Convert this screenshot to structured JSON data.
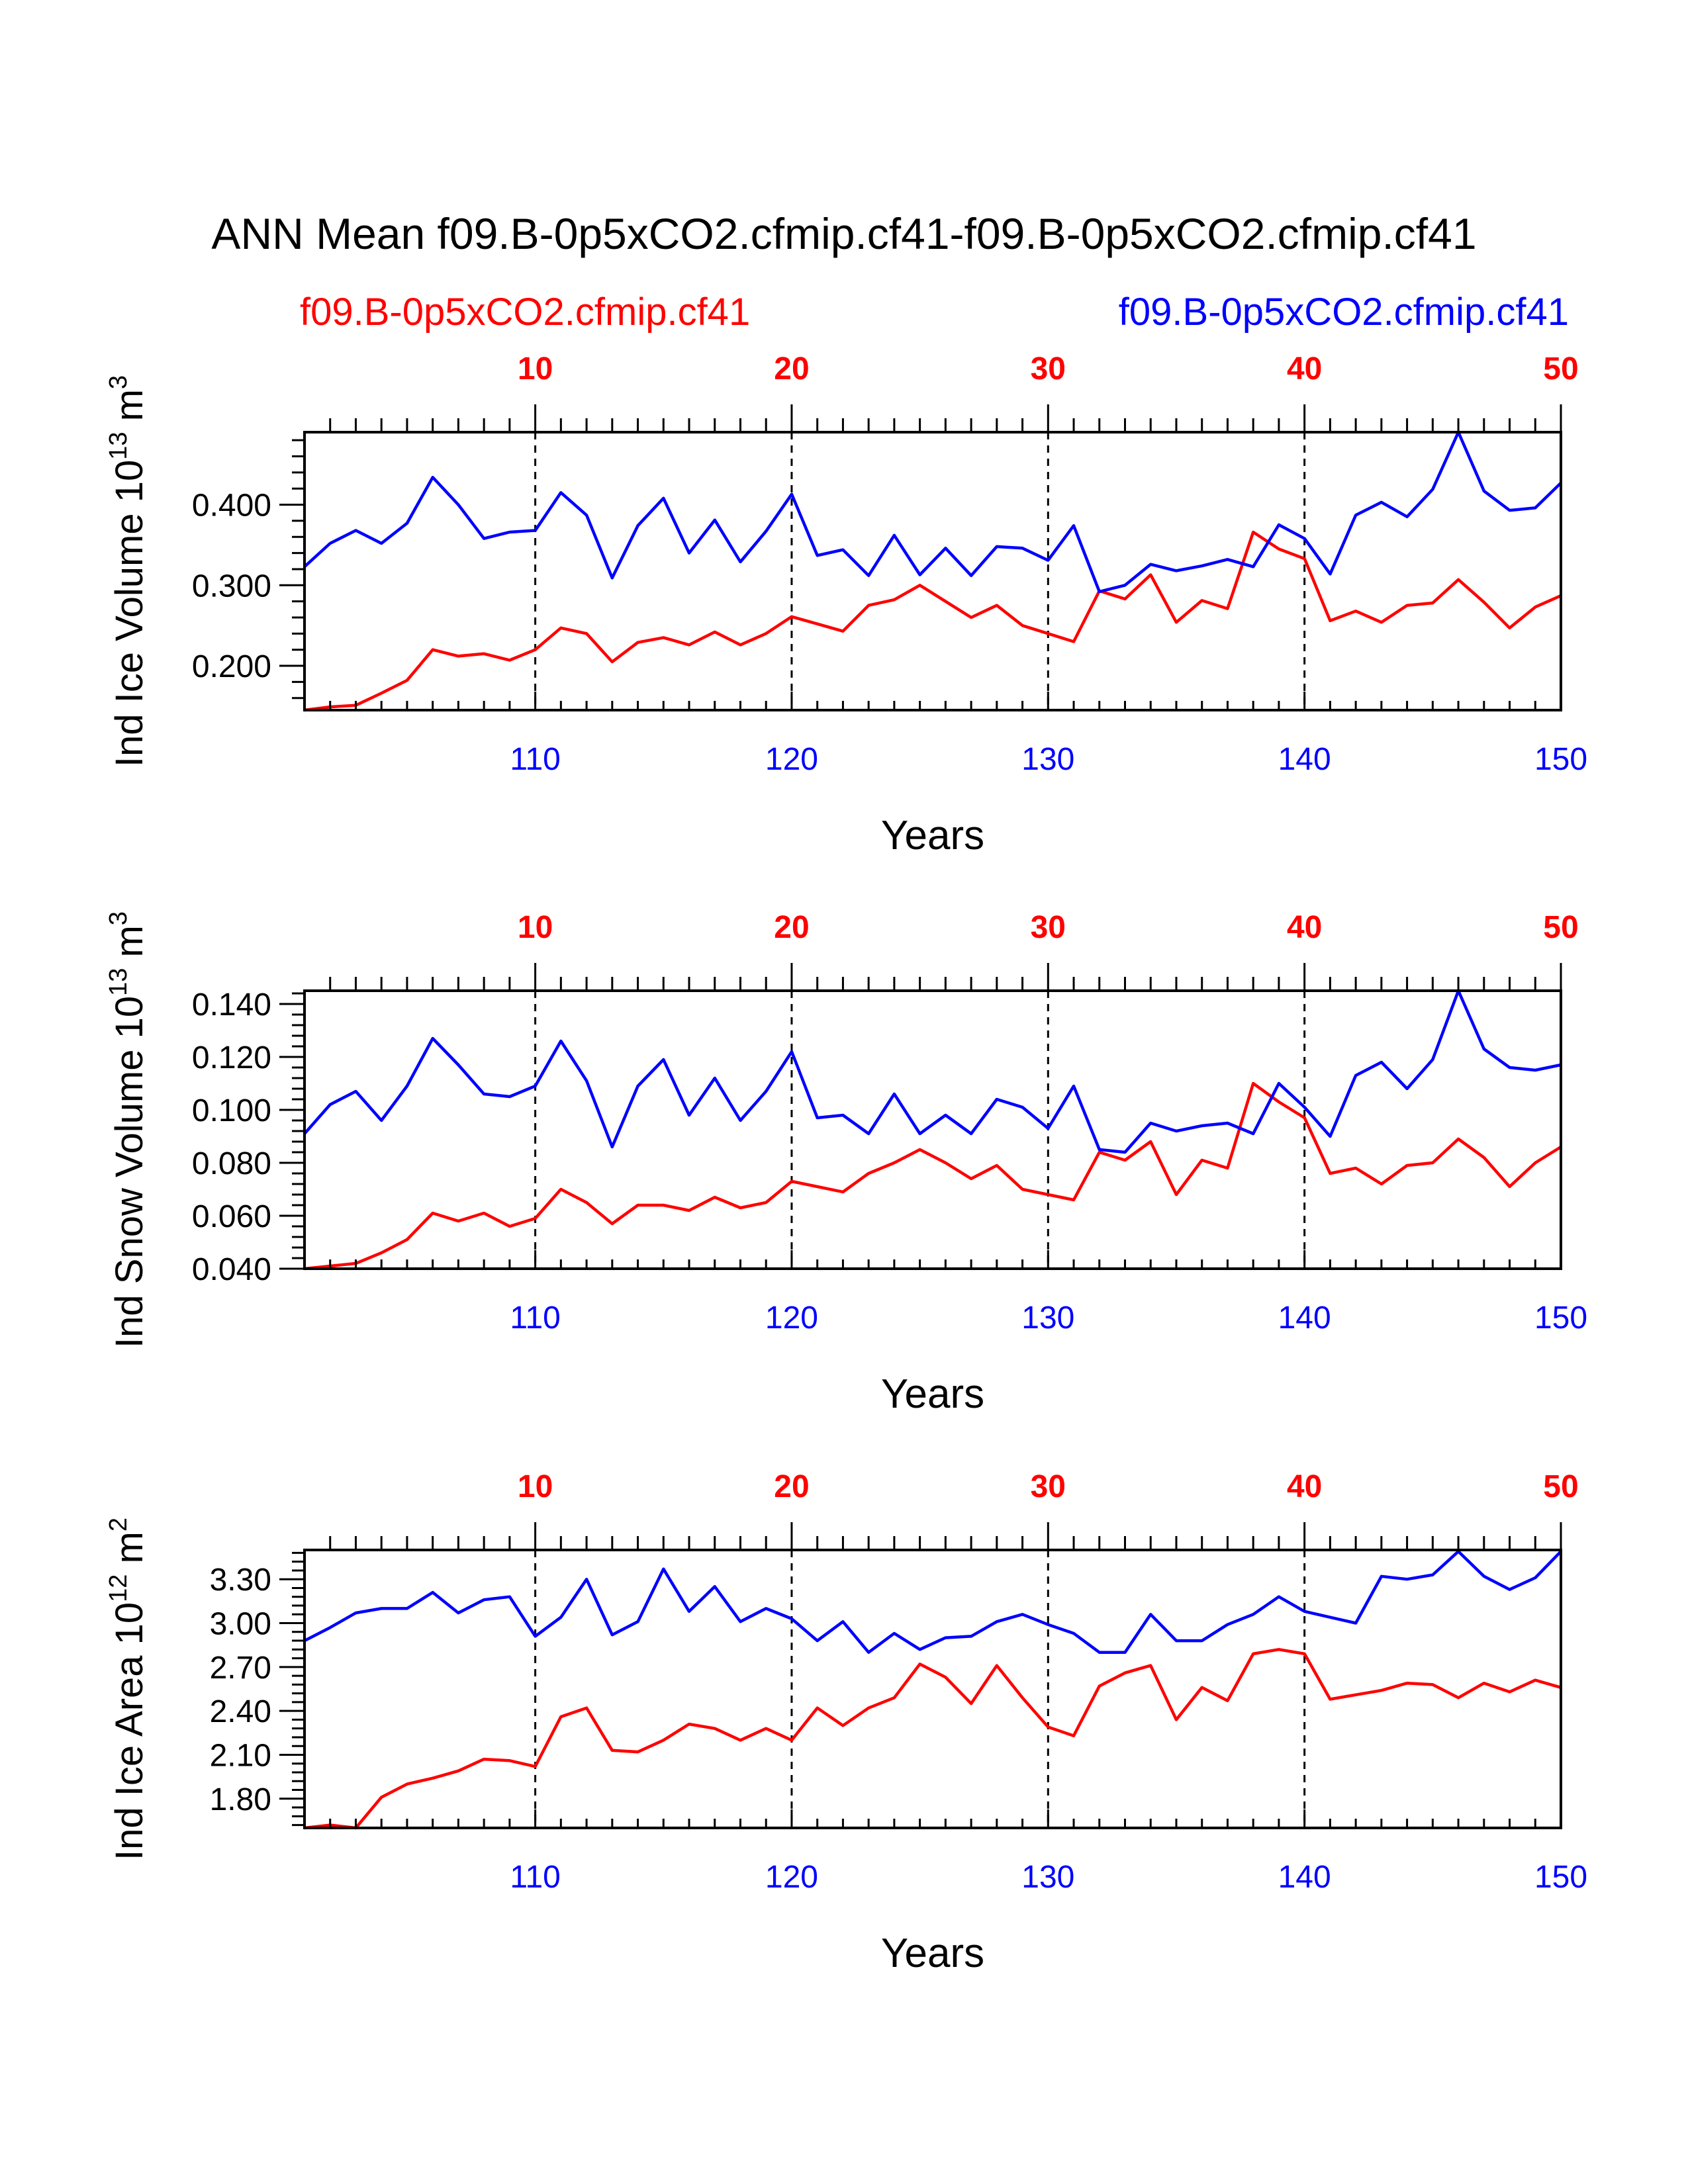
{
  "title": "ANN Mean f09.B-0p5xCO2.cfmip.cf41-f09.B-0p5xCO2.cfmip.cf41",
  "legend_left": "f09.B-0p5xCO2.cfmip.cf41",
  "legend_right": "f09.B-0p5xCO2.cfmip.cf41",
  "colors": {
    "series_a": "#ff0000",
    "series_b": "#0000ff"
  },
  "chart_data": [
    {
      "type": "line",
      "ylabel": "Ind Ice Volume 10",
      "ylabel_exp": "13",
      "ylabel_unit": " m",
      "ylabel_unit_exp": "3",
      "xlabel": "Years",
      "x_bottom": [
        101,
        102,
        103,
        104,
        105,
        106,
        107,
        108,
        109,
        110,
        111,
        112,
        113,
        114,
        115,
        116,
        117,
        118,
        119,
        120,
        121,
        122,
        123,
        124,
        125,
        126,
        127,
        128,
        129,
        130,
        131,
        132,
        133,
        134,
        135,
        136,
        137,
        138,
        139,
        140,
        141,
        142,
        143,
        144,
        145,
        146,
        147,
        148,
        149,
        150
      ],
      "x_top": [
        1,
        2,
        3,
        4,
        5,
        6,
        7,
        8,
        9,
        10,
        11,
        12,
        13,
        14,
        15,
        16,
        17,
        18,
        19,
        20,
        21,
        22,
        23,
        24,
        25,
        26,
        27,
        28,
        29,
        30,
        31,
        32,
        33,
        34,
        35,
        36,
        37,
        38,
        39,
        40,
        41,
        42,
        43,
        44,
        45,
        46,
        47,
        48,
        49,
        50
      ],
      "xlim_bottom": [
        101,
        150
      ],
      "xlim_top": [
        1,
        50
      ],
      "ylim": [
        0.145,
        0.49
      ],
      "yticks": [
        0.2,
        0.3,
        0.4
      ],
      "ytick_labels": [
        "0.200",
        "0.300",
        "0.400"
      ],
      "xticks_bottom": [
        110,
        120,
        130,
        140,
        150
      ],
      "xtick_labels_bottom": [
        "110",
        "120",
        "130",
        "140",
        "150"
      ],
      "xticks_top": [
        10,
        20,
        30,
        40,
        50
      ],
      "xtick_labels_top": [
        "10",
        "20",
        "30",
        "40",
        "50"
      ],
      "series": [
        {
          "name": "f09.B-0p5xCO2.cfmip.cf41 (red)",
          "color": "#ff0000",
          "values": [
            0.145,
            0.149,
            0.151,
            0.166,
            0.182,
            0.22,
            0.212,
            0.215,
            0.207,
            0.22,
            0.247,
            0.24,
            0.205,
            0.229,
            0.235,
            0.226,
            0.242,
            0.226,
            0.24,
            0.261,
            0.252,
            0.243,
            0.275,
            0.282,
            0.3,
            0.28,
            0.26,
            0.275,
            0.25,
            0.24,
            0.23,
            0.293,
            0.283,
            0.313,
            0.254,
            0.281,
            0.271,
            0.366,
            0.345,
            0.333,
            0.256,
            0.268,
            0.254,
            0.275,
            0.278,
            0.307,
            0.279,
            0.247,
            0.273,
            0.287
          ]
        },
        {
          "name": "f09.B-0p5xCO2.cfmip.cf41 (blue)",
          "color": "#0000ff",
          "values": [
            0.323,
            0.352,
            0.368,
            0.352,
            0.377,
            0.434,
            0.4,
            0.358,
            0.366,
            0.368,
            0.415,
            0.387,
            0.309,
            0.374,
            0.408,
            0.34,
            0.381,
            0.329,
            0.367,
            0.413,
            0.337,
            0.344,
            0.312,
            0.362,
            0.313,
            0.346,
            0.312,
            0.348,
            0.346,
            0.331,
            0.374,
            0.292,
            0.3,
            0.326,
            0.318,
            0.324,
            0.332,
            0.323,
            0.375,
            0.358,
            0.314,
            0.387,
            0.403,
            0.385,
            0.419,
            0.49,
            0.417,
            0.393,
            0.396,
            0.427
          ]
        }
      ]
    },
    {
      "type": "line",
      "ylabel": "Ind Snow Volume 10",
      "ylabel_exp": "13",
      "ylabel_unit": " m",
      "ylabel_unit_exp": "3",
      "xlabel": "Years",
      "x_bottom": [
        101,
        102,
        103,
        104,
        105,
        106,
        107,
        108,
        109,
        110,
        111,
        112,
        113,
        114,
        115,
        116,
        117,
        118,
        119,
        120,
        121,
        122,
        123,
        124,
        125,
        126,
        127,
        128,
        129,
        130,
        131,
        132,
        133,
        134,
        135,
        136,
        137,
        138,
        139,
        140,
        141,
        142,
        143,
        144,
        145,
        146,
        147,
        148,
        149,
        150
      ],
      "x_top": [
        1,
        2,
        3,
        4,
        5,
        6,
        7,
        8,
        9,
        10,
        11,
        12,
        13,
        14,
        15,
        16,
        17,
        18,
        19,
        20,
        21,
        22,
        23,
        24,
        25,
        26,
        27,
        28,
        29,
        30,
        31,
        32,
        33,
        34,
        35,
        36,
        37,
        38,
        39,
        40,
        41,
        42,
        43,
        44,
        45,
        46,
        47,
        48,
        49,
        50
      ],
      "xlim_bottom": [
        101,
        150
      ],
      "xlim_top": [
        1,
        50
      ],
      "ylim": [
        0.04,
        0.145
      ],
      "yticks": [
        0.04,
        0.06,
        0.08,
        0.1,
        0.12,
        0.14
      ],
      "ytick_labels": [
        "0.040",
        "0.060",
        "0.080",
        "0.100",
        "0.120",
        "0.140"
      ],
      "xticks_bottom": [
        110,
        120,
        130,
        140,
        150
      ],
      "xtick_labels_bottom": [
        "110",
        "120",
        "130",
        "140",
        "150"
      ],
      "xticks_top": [
        10,
        20,
        30,
        40,
        50
      ],
      "xtick_labels_top": [
        "10",
        "20",
        "30",
        "40",
        "50"
      ],
      "series": [
        {
          "name": "f09.B-0p5xCO2.cfmip.cf41 (red)",
          "color": "#ff0000",
          "values": [
            0.04,
            0.041,
            0.042,
            0.046,
            0.051,
            0.061,
            0.058,
            0.061,
            0.056,
            0.059,
            0.07,
            0.065,
            0.057,
            0.064,
            0.064,
            0.062,
            0.067,
            0.063,
            0.065,
            0.073,
            0.071,
            0.069,
            0.076,
            0.08,
            0.085,
            0.08,
            0.074,
            0.079,
            0.07,
            0.068,
            0.066,
            0.084,
            0.081,
            0.088,
            0.068,
            0.081,
            0.078,
            0.11,
            0.103,
            0.097,
            0.076,
            0.078,
            0.072,
            0.079,
            0.08,
            0.089,
            0.082,
            0.071,
            0.08,
            0.086
          ]
        },
        {
          "name": "f09.B-0p5xCO2.cfmip.cf41 (blue)",
          "color": "#0000ff",
          "values": [
            0.091,
            0.102,
            0.107,
            0.096,
            0.109,
            0.127,
            0.117,
            0.106,
            0.105,
            0.109,
            0.126,
            0.111,
            0.086,
            0.109,
            0.119,
            0.098,
            0.112,
            0.096,
            0.107,
            0.122,
            0.097,
            0.098,
            0.091,
            0.106,
            0.091,
            0.098,
            0.091,
            0.104,
            0.101,
            0.093,
            0.109,
            0.085,
            0.084,
            0.095,
            0.092,
            0.094,
            0.095,
            0.091,
            0.11,
            0.101,
            0.09,
            0.113,
            0.118,
            0.108,
            0.119,
            0.145,
            0.123,
            0.116,
            0.115,
            0.117
          ]
        }
      ]
    },
    {
      "type": "line",
      "ylabel": "Ind Ice Area 10",
      "ylabel_exp": "12",
      "ylabel_unit": " m",
      "ylabel_unit_exp": "2",
      "xlabel": "Years",
      "x_bottom": [
        101,
        102,
        103,
        104,
        105,
        106,
        107,
        108,
        109,
        110,
        111,
        112,
        113,
        114,
        115,
        116,
        117,
        118,
        119,
        120,
        121,
        122,
        123,
        124,
        125,
        126,
        127,
        128,
        129,
        130,
        131,
        132,
        133,
        134,
        135,
        136,
        137,
        138,
        139,
        140,
        141,
        142,
        143,
        144,
        145,
        146,
        147,
        148,
        149,
        150
      ],
      "x_top": [
        1,
        2,
        3,
        4,
        5,
        6,
        7,
        8,
        9,
        10,
        11,
        12,
        13,
        14,
        15,
        16,
        17,
        18,
        19,
        20,
        21,
        22,
        23,
        24,
        25,
        26,
        27,
        28,
        29,
        30,
        31,
        32,
        33,
        34,
        35,
        36,
        37,
        38,
        39,
        40,
        41,
        42,
        43,
        44,
        45,
        46,
        47,
        48,
        49,
        50
      ],
      "xlim_bottom": [
        101,
        150
      ],
      "xlim_top": [
        1,
        50
      ],
      "ylim": [
        1.6,
        3.5
      ],
      "yticks": [
        1.8,
        2.1,
        2.4,
        2.7,
        3.0,
        3.3
      ],
      "ytick_labels": [
        "1.80",
        "2.10",
        "2.40",
        "2.70",
        "3.00",
        "3.30"
      ],
      "xticks_bottom": [
        110,
        120,
        130,
        140,
        150
      ],
      "xtick_labels_bottom": [
        "110",
        "120",
        "130",
        "140",
        "150"
      ],
      "xticks_top": [
        10,
        20,
        30,
        40,
        50
      ],
      "xtick_labels_top": [
        "10",
        "20",
        "30",
        "40",
        "50"
      ],
      "series": [
        {
          "name": "f09.B-0p5xCO2.cfmip.cf41 (red)",
          "color": "#ff0000",
          "values": [
            1.6,
            1.62,
            1.6,
            1.81,
            1.9,
            1.94,
            1.99,
            2.07,
            2.06,
            2.02,
            2.36,
            2.42,
            2.13,
            2.12,
            2.2,
            2.31,
            2.28,
            2.2,
            2.28,
            2.2,
            2.42,
            2.3,
            2.42,
            2.49,
            2.72,
            2.63,
            2.45,
            2.71,
            2.49,
            2.29,
            2.23,
            2.57,
            2.66,
            2.71,
            2.34,
            2.56,
            2.47,
            2.79,
            2.82,
            2.79,
            2.48,
            2.51,
            2.54,
            2.59,
            2.58,
            2.49,
            2.59,
            2.53,
            2.61,
            2.56
          ]
        },
        {
          "name": "f09.B-0p5xCO2.cfmip.cf41 (blue)",
          "color": "#0000ff",
          "values": [
            2.88,
            2.97,
            3.07,
            3.1,
            3.1,
            3.21,
            3.07,
            3.16,
            3.18,
            2.91,
            3.04,
            3.3,
            2.92,
            3.01,
            3.37,
            3.08,
            3.25,
            3.01,
            3.1,
            3.03,
            2.88,
            3.01,
            2.8,
            2.93,
            2.82,
            2.9,
            2.91,
            3.01,
            3.06,
            2.99,
            2.93,
            2.8,
            2.8,
            3.06,
            2.88,
            2.88,
            2.99,
            3.06,
            3.18,
            3.08,
            3.04,
            3.0,
            3.32,
            3.3,
            3.33,
            3.49,
            3.32,
            3.23,
            3.31,
            3.49
          ]
        }
      ]
    }
  ]
}
